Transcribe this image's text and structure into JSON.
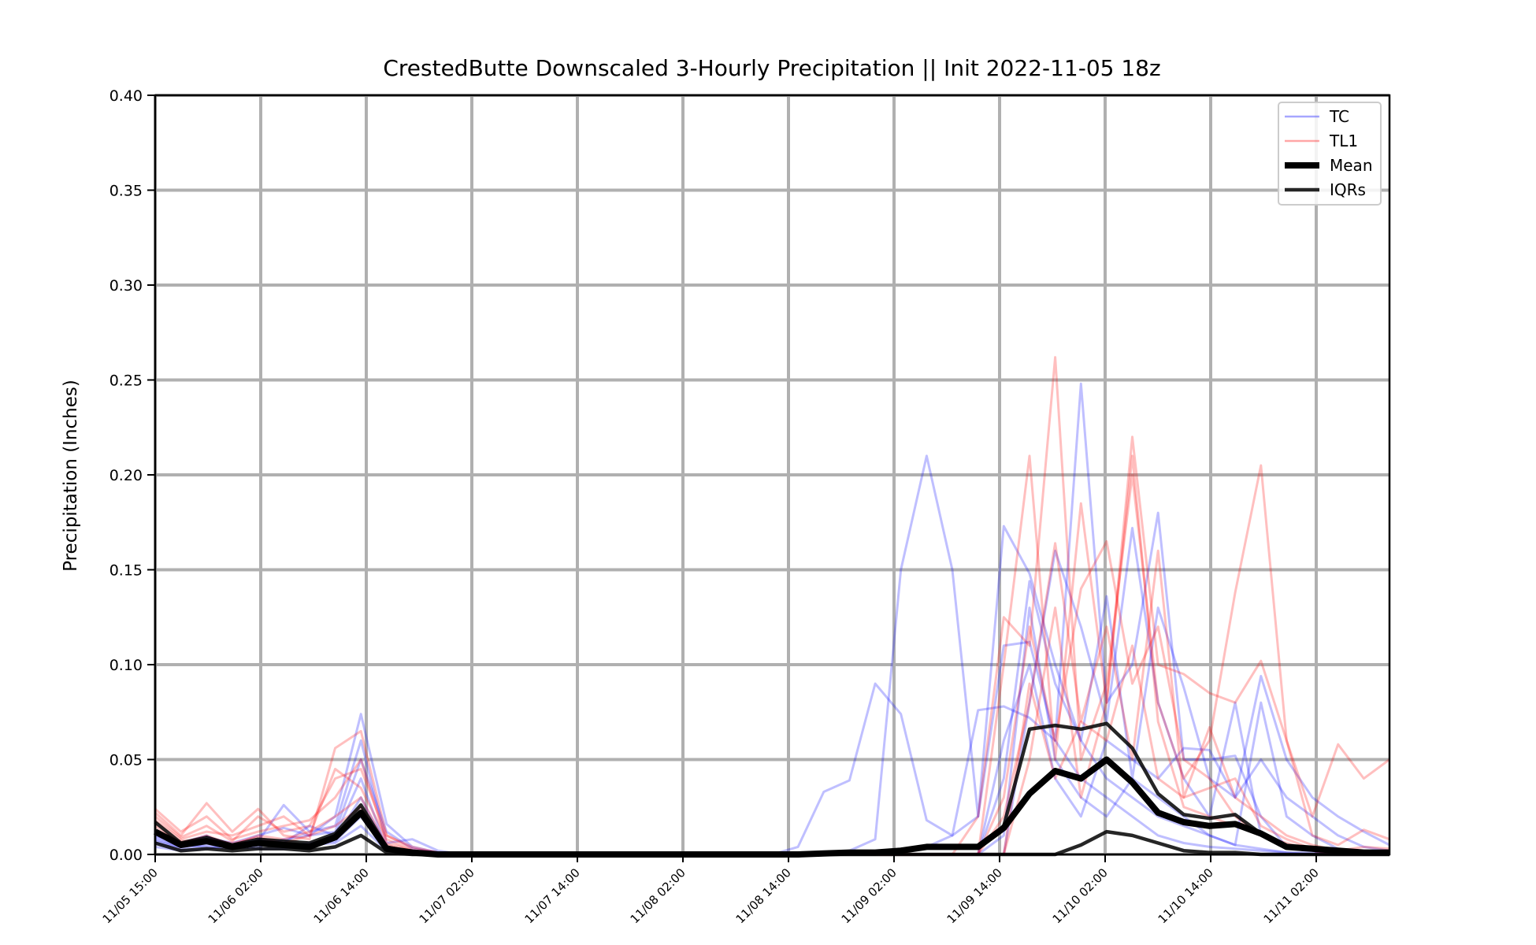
{
  "chart_data": {
    "type": "line",
    "title": "CrestedButte Downscaled 3-Hourly Precipitation || Init 2022-11-05 18z",
    "xlabel": "",
    "ylabel": "Precipitation (Inches)",
    "ylim": [
      0.0,
      0.4
    ],
    "yticks": [
      "0.00",
      "0.05",
      "0.10",
      "0.15",
      "0.20",
      "0.25",
      "0.30",
      "0.35",
      "0.40"
    ],
    "xticks": [
      "11/05 15:00",
      "11/06 02:00",
      "11/06 14:00",
      "11/07 02:00",
      "11/07 14:00",
      "11/08 02:00",
      "11/08 14:00",
      "11/09 02:00",
      "11/09 14:00",
      "11/10 02:00",
      "11/10 14:00",
      "11/11 02:00"
    ],
    "x_step_hours": 3,
    "grid": true,
    "legend_position": "top-right",
    "legend": [
      {
        "label": "TC",
        "color": "#0000ff",
        "kind": "thin"
      },
      {
        "label": "TL1",
        "color": "#ff0000",
        "kind": "thin"
      },
      {
        "label": "Mean",
        "color": "#000000",
        "kind": "thick"
      },
      {
        "label": "IQRs",
        "color": "#000000",
        "kind": "medium"
      }
    ],
    "series": [
      {
        "name": "Mean",
        "color": "#000000",
        "role": "mean",
        "values": [
          0.012,
          0.005,
          0.007,
          0.004,
          0.006,
          0.005,
          0.004,
          0.009,
          0.022,
          0.003,
          0.001,
          0.0,
          0,
          0,
          0,
          0,
          0,
          0,
          0,
          0,
          0,
          0,
          0,
          0,
          0,
          0,
          0.0005,
          0.001,
          0.001,
          0.002,
          0.004,
          0.004,
          0.004,
          0.014,
          0.032,
          0.044,
          0.04,
          0.05,
          0.038,
          0.022,
          0.017,
          0.015,
          0.016,
          0.011,
          0.004,
          0.003,
          0.002,
          0.001,
          0.001
        ]
      },
      {
        "name": "IQR upper",
        "color": "#000000",
        "role": "iqr",
        "values": [
          0.017,
          0.006,
          0.009,
          0.005,
          0.008,
          0.007,
          0.006,
          0.011,
          0.026,
          0.004,
          0.001,
          0.0,
          0,
          0,
          0,
          0,
          0,
          0,
          0,
          0,
          0,
          0,
          0,
          0,
          0,
          0,
          0.0005,
          0.001,
          0.001,
          0.002,
          0.004,
          0.004,
          0.004,
          0.015,
          0.066,
          0.068,
          0.066,
          0.069,
          0.056,
          0.032,
          0.021,
          0.019,
          0.021,
          0.011,
          0.004,
          0.003,
          0.002,
          0.001,
          0.001
        ]
      },
      {
        "name": "IQR lower",
        "color": "#000000",
        "role": "iqr",
        "values": [
          0.006,
          0.002,
          0.003,
          0.002,
          0.003,
          0.003,
          0.002,
          0.004,
          0.01,
          0.001,
          0.0,
          0.0,
          0,
          0,
          0,
          0,
          0,
          0,
          0,
          0,
          0,
          0,
          0,
          0,
          0,
          0,
          0,
          0,
          0,
          0,
          0,
          0,
          0,
          0,
          0,
          0,
          0.005,
          0.012,
          0.01,
          0.006,
          0.002,
          0.001,
          0.001,
          0.0,
          0.0,
          0.0,
          0.0,
          0.0,
          0.0
        ]
      },
      {
        "name": "TC",
        "color": "#0000ff",
        "role": "member",
        "values": [
          0.01,
          0.005,
          0.009,
          0.006,
          0.01,
          0.014,
          0.01,
          0.02,
          0.074,
          0.016,
          0.004,
          0.001,
          0,
          0,
          0,
          0,
          0,
          0,
          0,
          0,
          0,
          0,
          0,
          0,
          0,
          0.004,
          0.033,
          0.039,
          0.09,
          0.074,
          0.018,
          0.01,
          0.076,
          0.078,
          0.072,
          0.06,
          0.04,
          0.03,
          0.02,
          0.01,
          0.006,
          0.004,
          0.003,
          0.002,
          0.001,
          0.001,
          0.0,
          0.0,
          0.0
        ]
      },
      {
        "name": "TC",
        "color": "#0000ff",
        "role": "member",
        "values": [
          0.006,
          0.003,
          0.005,
          0.004,
          0.007,
          0.026,
          0.012,
          0.015,
          0.06,
          0.006,
          0.008,
          0.002,
          0,
          0,
          0,
          0,
          0,
          0,
          0,
          0,
          0,
          0,
          0,
          0,
          0,
          0,
          0.0,
          0.002,
          0.008,
          0.15,
          0.21,
          0.15,
          0.02,
          0.173,
          0.148,
          0.1,
          0.06,
          0.04,
          0.03,
          0.02,
          0.015,
          0.01,
          0.005,
          0.003,
          0.001,
          0.0,
          0.0,
          0.0,
          0.0
        ]
      },
      {
        "name": "TC",
        "color": "#0000ff",
        "role": "member",
        "values": [
          0.008,
          0.004,
          0.006,
          0.005,
          0.004,
          0.008,
          0.01,
          0.012,
          0.05,
          0.012,
          0.003,
          0.001,
          0,
          0,
          0,
          0,
          0,
          0,
          0,
          0,
          0,
          0,
          0,
          0,
          0,
          0,
          0,
          0,
          0,
          0.002,
          0.004,
          0.01,
          0.02,
          0.11,
          0.112,
          0.06,
          0.248,
          0.08,
          0.1,
          0.18,
          0.05,
          0.05,
          0.052,
          0.02,
          0.004,
          0.002,
          0.0,
          0.0,
          0.0
        ]
      },
      {
        "name": "TC",
        "color": "#0000ff",
        "role": "member",
        "values": [
          0.012,
          0.006,
          0.01,
          0.003,
          0.006,
          0.005,
          0.004,
          0.008,
          0.03,
          0.004,
          0.002,
          0.0,
          0,
          0,
          0,
          0,
          0,
          0,
          0,
          0,
          0,
          0,
          0,
          0,
          0,
          0,
          0,
          0,
          0,
          0.0,
          0.0,
          0.0,
          0.0,
          0.04,
          0.144,
          0.09,
          0.06,
          0.136,
          0.04,
          0.13,
          0.088,
          0.04,
          0.03,
          0.094,
          0.05,
          0.03,
          0.02,
          0.012,
          0.005
        ]
      },
      {
        "name": "TC",
        "color": "#0000ff",
        "role": "member",
        "values": [
          0.004,
          0.002,
          0.003,
          0.005,
          0.008,
          0.006,
          0.015,
          0.01,
          0.04,
          0.003,
          0.001,
          0.0,
          0,
          0,
          0,
          0,
          0,
          0,
          0,
          0,
          0,
          0,
          0,
          0,
          0,
          0,
          0,
          0,
          0,
          0,
          0.0,
          0.0,
          0.0,
          0.0,
          0.08,
          0.16,
          0.12,
          0.07,
          0.172,
          0.08,
          0.04,
          0.02,
          0.08,
          0.01,
          0.005,
          0.002,
          0.0,
          0.0,
          0.0
        ]
      },
      {
        "name": "TC",
        "color": "#0000ff",
        "role": "member",
        "values": [
          0.009,
          0.005,
          0.004,
          0.003,
          0.005,
          0.004,
          0.006,
          0.007,
          0.02,
          0.002,
          0.001,
          0.0,
          0,
          0,
          0,
          0,
          0,
          0,
          0,
          0,
          0,
          0,
          0,
          0,
          0,
          0,
          0,
          0,
          0,
          0,
          0,
          0,
          0.0,
          0.06,
          0.1,
          0.04,
          0.02,
          0.06,
          0.05,
          0.04,
          0.056,
          0.055,
          0.03,
          0.05,
          0.03,
          0.02,
          0.01,
          0.004,
          0.002
        ]
      },
      {
        "name": "TC",
        "color": "#0000ff",
        "role": "member",
        "values": [
          0.007,
          0.004,
          0.007,
          0.004,
          0.003,
          0.003,
          0.005,
          0.006,
          0.015,
          0.002,
          0.0,
          0.0,
          0,
          0,
          0,
          0,
          0,
          0,
          0,
          0,
          0,
          0,
          0,
          0,
          0,
          0,
          0,
          0,
          0,
          0,
          0,
          0,
          0.0,
          0.01,
          0.13,
          0.05,
          0.03,
          0.02,
          0.04,
          0.03,
          0.02,
          0.01,
          0.005,
          0.08,
          0.02,
          0.01,
          0.003,
          0.001,
          0.0
        ]
      },
      {
        "name": "TL1",
        "color": "#ff0000",
        "role": "member",
        "values": [
          0.022,
          0.01,
          0.027,
          0.012,
          0.024,
          0.01,
          0.008,
          0.056,
          0.065,
          0.01,
          0.004,
          0.001,
          0,
          0,
          0,
          0,
          0,
          0,
          0,
          0,
          0,
          0,
          0,
          0,
          0,
          0,
          0,
          0,
          0,
          0,
          0.0,
          0.0,
          0.02,
          0.125,
          0.11,
          0.262,
          0.05,
          0.09,
          0.2,
          0.08,
          0.04,
          0.06,
          0.138,
          0.205,
          0.06,
          0.02,
          0.058,
          0.04,
          0.05
        ]
      },
      {
        "name": "TL1",
        "color": "#ff0000",
        "role": "member",
        "values": [
          0.018,
          0.008,
          0.012,
          0.01,
          0.015,
          0.02,
          0.01,
          0.045,
          0.035,
          0.008,
          0.002,
          0.0,
          0,
          0,
          0,
          0,
          0,
          0,
          0,
          0,
          0,
          0,
          0,
          0,
          0,
          0,
          0,
          0,
          0,
          0,
          0,
          0,
          0.0,
          0.1,
          0.21,
          0.05,
          0.185,
          0.08,
          0.22,
          0.1,
          0.095,
          0.085,
          0.08,
          0.102,
          0.06,
          0.01,
          0.005,
          0.013,
          0.008
        ]
      },
      {
        "name": "TL1",
        "color": "#ff0000",
        "role": "member",
        "values": [
          0.024,
          0.012,
          0.02,
          0.008,
          0.012,
          0.015,
          0.018,
          0.03,
          0.05,
          0.006,
          0.002,
          0.0,
          0,
          0,
          0,
          0,
          0,
          0,
          0,
          0,
          0,
          0,
          0,
          0,
          0,
          0,
          0,
          0,
          0,
          0,
          0,
          0,
          0.0,
          0.02,
          0.08,
          0.164,
          0.07,
          0.12,
          0.05,
          0.16,
          0.03,
          0.067,
          0.03,
          0.02,
          0.01,
          0.005,
          0.002,
          0.004,
          0.003
        ]
      },
      {
        "name": "TL1",
        "color": "#ff0000",
        "role": "member",
        "values": [
          0.015,
          0.006,
          0.01,
          0.005,
          0.01,
          0.008,
          0.012,
          0.02,
          0.03,
          0.005,
          0.001,
          0.0,
          0,
          0,
          0,
          0,
          0,
          0,
          0,
          0,
          0,
          0,
          0,
          0,
          0,
          0,
          0,
          0,
          0,
          0,
          0,
          0,
          0,
          0.03,
          0.12,
          0.06,
          0.14,
          0.165,
          0.09,
          0.12,
          0.05,
          0.04,
          0.02,
          0.01,
          0.005,
          0.002,
          0.0,
          0.0,
          0.0
        ]
      },
      {
        "name": "TL1",
        "color": "#ff0000",
        "role": "member",
        "values": [
          0.02,
          0.009,
          0.015,
          0.007,
          0.02,
          0.012,
          0.015,
          0.04,
          0.045,
          0.01,
          0.003,
          0.001,
          0,
          0,
          0,
          0,
          0,
          0,
          0,
          0,
          0,
          0,
          0,
          0,
          0,
          0,
          0,
          0,
          0,
          0,
          0,
          0,
          0,
          0.0,
          0.09,
          0.04,
          0.07,
          0.06,
          0.11,
          0.04,
          0.03,
          0.035,
          0.04,
          0.015,
          0.008,
          0.003,
          0.001,
          0.0,
          0.0
        ]
      },
      {
        "name": "TL1",
        "color": "#ff0000",
        "role": "member",
        "values": [
          0.013,
          0.007,
          0.008,
          0.006,
          0.009,
          0.006,
          0.01,
          0.015,
          0.025,
          0.004,
          0.001,
          0.0,
          0,
          0,
          0,
          0,
          0,
          0,
          0,
          0,
          0,
          0,
          0,
          0,
          0,
          0,
          0,
          0,
          0,
          0,
          0,
          0,
          0,
          0.0,
          0.05,
          0.13,
          0.03,
          0.08,
          0.21,
          0.07,
          0.025,
          0.02,
          0.015,
          0.01,
          0.006,
          0.002,
          0.0,
          0.0,
          0.0
        ]
      }
    ]
  }
}
